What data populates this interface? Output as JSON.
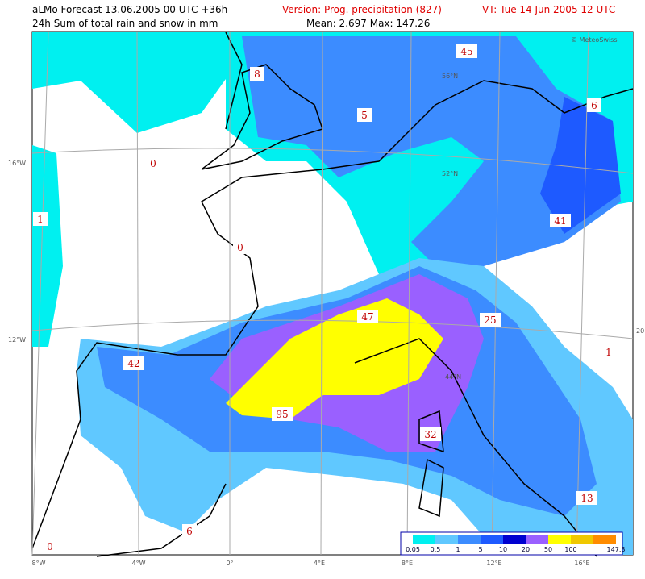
{
  "header": {
    "title": "aLMo Forecast 13.06.2005 00 UTC +36h",
    "subtitle": "24h Sum of total rain and snow in mm",
    "version": "Version: Prog. precipitation (827)",
    "stats": "Mean: 2.697  Max: 147.26",
    "valid_time": "VT: Tue 14 Jun 2005 12 UTC",
    "copyright": "© MeteoSwiss"
  },
  "grid_labels": {
    "lon": [
      "8°W",
      "4°W",
      "0°",
      "4°E",
      "8°E",
      "12°E",
      "16°E"
    ],
    "lat_left": [
      "16°W",
      "12°W"
    ],
    "lat_inner": [
      "56°N",
      "52°N",
      "44°N"
    ],
    "right_edge": "20"
  },
  "map_labels": [
    "8",
    "45",
    "5",
    "6",
    "0",
    "1",
    "0",
    "41",
    "47",
    "25",
    "42",
    "1",
    "95",
    "32",
    "13",
    "6",
    "0"
  ],
  "legend": {
    "labels": [
      "0.05",
      "0.5",
      "1",
      "5",
      "10",
      "20",
      "50",
      "100",
      "147.3"
    ],
    "colors": [
      "#00f0f0",
      "#60c8ff",
      "#3c8cff",
      "#1e5aff",
      "#0000d0",
      "#9a60ff",
      "#ffff00",
      "#f0c800",
      "#ff8c00"
    ]
  }
}
